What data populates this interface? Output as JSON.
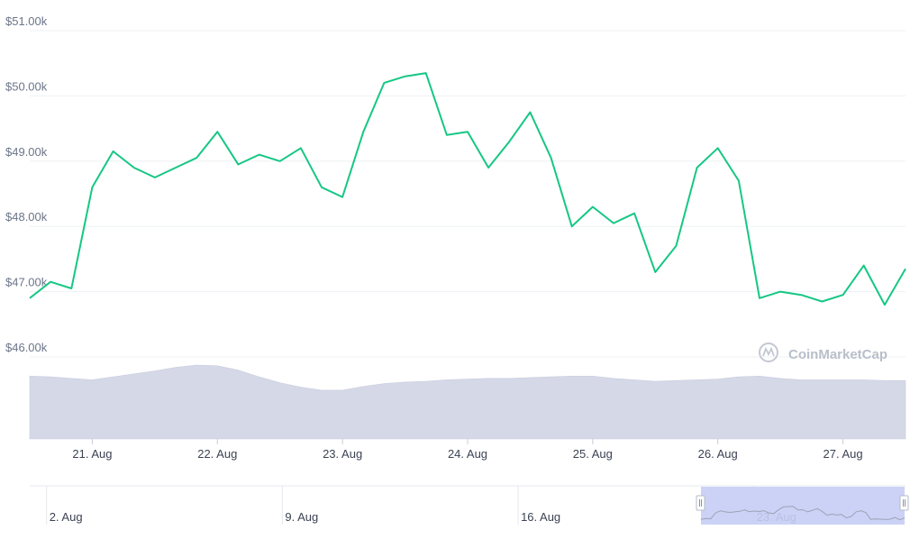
{
  "brand": {
    "name": "CoinMarketCap"
  },
  "colors": {
    "price_line": "#16c784",
    "volume_fill": "#d5d8e6",
    "grid": "#eef0f4",
    "navigator_band": "#c7cdf5",
    "navigator_line": "#9aa3b5"
  },
  "chart_data": {
    "type": "line",
    "series": [
      {
        "x": [
          "Aug 20 12:00",
          "Aug 20 16:00",
          "Aug 20 20:00",
          "Aug 21 00:00",
          "Aug 21 04:00",
          "Aug 21 08:00",
          "Aug 21 12:00",
          "Aug 21 16:00",
          "Aug 21 20:00",
          "Aug 22 00:00",
          "Aug 22 04:00",
          "Aug 22 08:00",
          "Aug 22 12:00",
          "Aug 22 16:00",
          "Aug 22 20:00",
          "Aug 23 00:00",
          "Aug 23 04:00",
          "Aug 23 08:00",
          "Aug 23 12:00",
          "Aug 23 16:00",
          "Aug 23 20:00",
          "Aug 24 00:00",
          "Aug 24 04:00",
          "Aug 24 08:00",
          "Aug 24 12:00",
          "Aug 24 16:00",
          "Aug 24 20:00",
          "Aug 25 00:00",
          "Aug 25 04:00",
          "Aug 25 08:00",
          "Aug 25 12:00",
          "Aug 25 16:00",
          "Aug 25 20:00",
          "Aug 26 00:00",
          "Aug 26 04:00",
          "Aug 26 08:00",
          "Aug 26 12:00",
          "Aug 26 16:00",
          "Aug 26 20:00",
          "Aug 27 00:00",
          "Aug 27 04:00",
          "Aug 27 08:00",
          "Aug 27 12:00"
        ],
        "values": [
          46900,
          47150,
          47050,
          48600,
          49150,
          48900,
          48750,
          48900,
          49050,
          49450,
          48950,
          49100,
          49000,
          49200,
          48600,
          48450,
          49450,
          50200,
          50300,
          50350,
          49400,
          49450,
          48900,
          49300,
          49750,
          49050,
          48000,
          48300,
          48050,
          48200,
          47300,
          47700,
          48900,
          49200,
          48700,
          46900,
          47000,
          46950,
          46850,
          46950,
          47400,
          46800,
          47350
        ]
      },
      {
        "x": [
          "Aug 20 12:00",
          "Aug 20 16:00",
          "Aug 20 20:00",
          "Aug 21 00:00",
          "Aug 21 04:00",
          "Aug 21 08:00",
          "Aug 21 12:00",
          "Aug 21 16:00",
          "Aug 21 20:00",
          "Aug 22 00:00",
          "Aug 22 04:00",
          "Aug 22 08:00",
          "Aug 22 12:00",
          "Aug 22 16:00",
          "Aug 22 20:00",
          "Aug 23 00:00",
          "Aug 23 04:00",
          "Aug 23 08:00",
          "Aug 23 12:00",
          "Aug 23 16:00",
          "Aug 23 20:00",
          "Aug 24 00:00",
          "Aug 24 04:00",
          "Aug 24 08:00",
          "Aug 24 12:00",
          "Aug 24 16:00",
          "Aug 24 20:00",
          "Aug 25 00:00",
          "Aug 25 04:00",
          "Aug 25 08:00",
          "Aug 25 12:00",
          "Aug 25 16:00",
          "Aug 25 20:00",
          "Aug 26 00:00",
          "Aug 26 04:00",
          "Aug 26 08:00",
          "Aug 26 12:00",
          "Aug 26 16:00",
          "Aug 26 20:00",
          "Aug 27 00:00",
          "Aug 27 04:00",
          "Aug 27 08:00",
          "Aug 27 12:00"
        ],
        "values": [
          0.85,
          0.84,
          0.82,
          0.8,
          0.84,
          0.88,
          0.92,
          0.97,
          1.0,
          0.99,
          0.93,
          0.84,
          0.76,
          0.7,
          0.66,
          0.66,
          0.71,
          0.75,
          0.77,
          0.78,
          0.8,
          0.81,
          0.82,
          0.82,
          0.83,
          0.84,
          0.85,
          0.85,
          0.82,
          0.8,
          0.78,
          0.79,
          0.8,
          0.81,
          0.84,
          0.85,
          0.82,
          0.8,
          0.8,
          0.8,
          0.8,
          0.79,
          0.79
        ]
      }
    ],
    "xlim": [
      "Aug 20 12:00",
      "Aug 27 12:00"
    ],
    "ylim": [
      46000,
      51000
    ],
    "yticks": [
      "$46.00k",
      "$47.00k",
      "$48.00k",
      "$49.00k",
      "$50.00k",
      "$51.00k"
    ],
    "xticks": [
      "21. Aug",
      "22. Aug",
      "23. Aug",
      "24. Aug",
      "25. Aug",
      "26. Aug",
      "27. Aug"
    ],
    "navigator": {
      "ticks": [
        "2. Aug",
        "9. Aug",
        "16. Aug",
        "23. Aug"
      ],
      "selected_range": [
        "Aug 20 12:00",
        "Aug 27 12:00"
      ]
    },
    "grid": true,
    "legend": "none"
  }
}
